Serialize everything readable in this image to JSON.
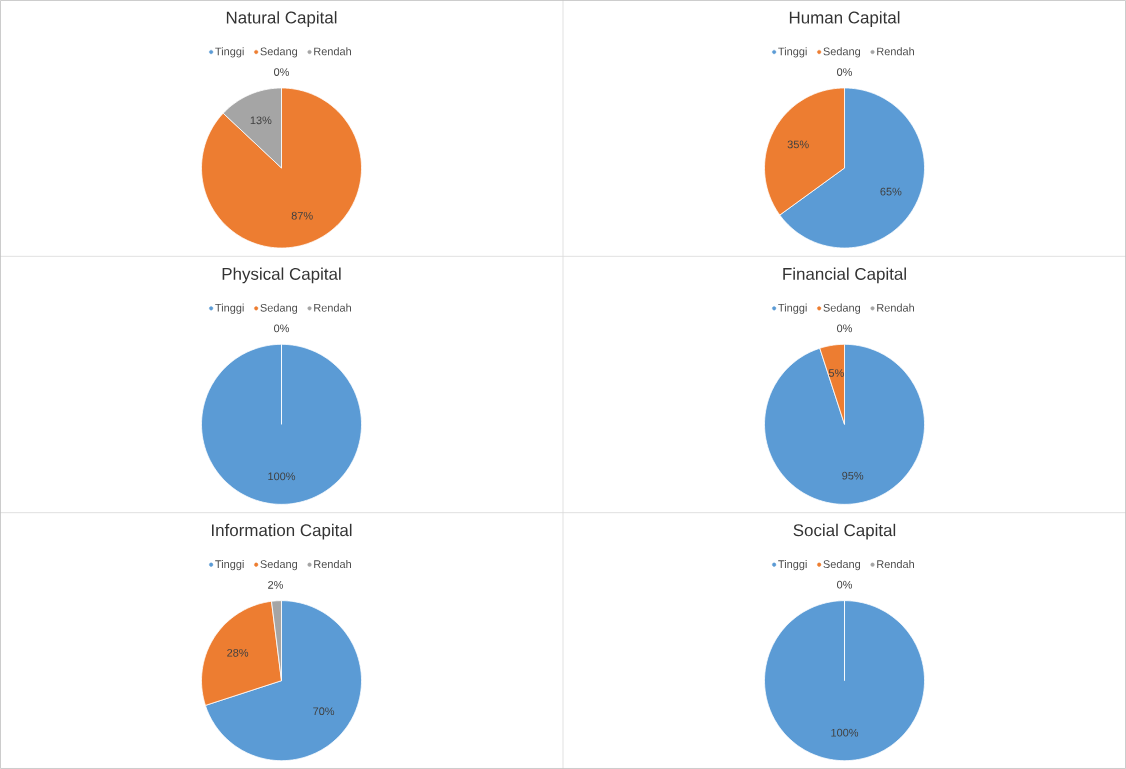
{
  "chart_data": [
    {
      "type": "pie",
      "title": "Natural Capital",
      "categories": [
        "Tinggi",
        "Sedang",
        "Rendah"
      ],
      "values": [
        0,
        87,
        13
      ],
      "value_labels": [
        "0%",
        "87%",
        "13%"
      ],
      "colors": [
        "#5b9bd5",
        "#ed7d31",
        "#a5a5a5"
      ],
      "legend": "top"
    },
    {
      "type": "pie",
      "title": "Human Capital",
      "categories": [
        "Tinggi",
        "Sedang",
        "Rendah"
      ],
      "values": [
        65,
        35,
        0
      ],
      "value_labels": [
        "65%",
        "35%",
        "0%"
      ],
      "colors": [
        "#5b9bd5",
        "#ed7d31",
        "#a5a5a5"
      ],
      "legend": "top"
    },
    {
      "type": "pie",
      "title": "Physical Capital",
      "categories": [
        "Tinggi",
        "Sedang",
        "Rendah"
      ],
      "values": [
        100,
        0,
        0
      ],
      "value_labels": [
        "100%",
        "0%",
        null
      ],
      "colors": [
        "#5b9bd5",
        "#ed7d31",
        "#a5a5a5"
      ],
      "legend": "top"
    },
    {
      "type": "pie",
      "title": "Financial Capital",
      "categories": [
        "Tinggi",
        "Sedang",
        "Rendah"
      ],
      "values": [
        95,
        5,
        0
      ],
      "value_labels": [
        "95%",
        "5%",
        "0%"
      ],
      "colors": [
        "#5b9bd5",
        "#ed7d31",
        "#a5a5a5"
      ],
      "legend": "top"
    },
    {
      "type": "pie",
      "title": "Information Capital",
      "categories": [
        "Tinggi",
        "Sedang",
        "Rendah"
      ],
      "values": [
        70,
        28,
        2
      ],
      "value_labels": [
        "70%",
        "28%",
        "2%"
      ],
      "colors": [
        "#5b9bd5",
        "#ed7d31",
        "#a5a5a5"
      ],
      "legend": "top"
    },
    {
      "type": "pie",
      "title": "Social Capital",
      "categories": [
        "Tinggi",
        "Sedang",
        "Rendah"
      ],
      "values": [
        100,
        0,
        0
      ],
      "value_labels": [
        "100%",
        "0%",
        null
      ],
      "colors": [
        "#5b9bd5",
        "#ed7d31",
        "#a5a5a5"
      ],
      "legend": "top"
    }
  ]
}
